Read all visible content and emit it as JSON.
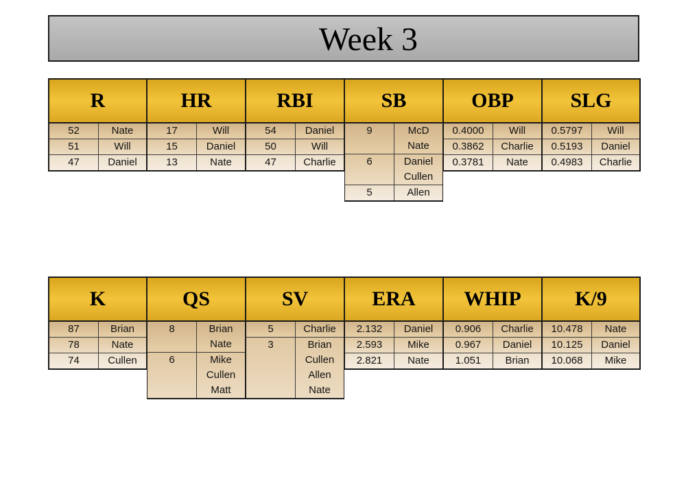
{
  "title": "Week 3",
  "hitting": [
    {
      "label": "R",
      "groups": [
        {
          "value": "52",
          "names": [
            "Nate"
          ]
        },
        {
          "value": "51",
          "names": [
            "Will"
          ]
        },
        {
          "value": "47",
          "names": [
            "Daniel"
          ]
        }
      ]
    },
    {
      "label": "HR",
      "groups": [
        {
          "value": "17",
          "names": [
            "Will"
          ]
        },
        {
          "value": "15",
          "names": [
            "Daniel"
          ]
        },
        {
          "value": "13",
          "names": [
            "Nate"
          ]
        }
      ]
    },
    {
      "label": "RBI",
      "groups": [
        {
          "value": "54",
          "names": [
            "Daniel"
          ]
        },
        {
          "value": "50",
          "names": [
            "Will"
          ]
        },
        {
          "value": "47",
          "names": [
            "Charlie"
          ]
        }
      ]
    },
    {
      "label": "SB",
      "groups": [
        {
          "value": "9",
          "names": [
            "McD",
            "Nate"
          ]
        },
        {
          "value": "6",
          "names": [
            "Daniel",
            "Cullen"
          ]
        },
        {
          "value": "5",
          "names": [
            "Allen"
          ]
        }
      ]
    },
    {
      "label": "OBP",
      "groups": [
        {
          "value": "0.4000",
          "names": [
            "Will"
          ]
        },
        {
          "value": "0.3862",
          "names": [
            "Charlie"
          ]
        },
        {
          "value": "0.3781",
          "names": [
            "Nate"
          ]
        }
      ]
    },
    {
      "label": "SLG",
      "groups": [
        {
          "value": "0.5797",
          "names": [
            "Will"
          ]
        },
        {
          "value": "0.5193",
          "names": [
            "Daniel"
          ]
        },
        {
          "value": "0.4983",
          "names": [
            "Charlie"
          ]
        }
      ]
    }
  ],
  "pitching": [
    {
      "label": "K",
      "groups": [
        {
          "value": "87",
          "names": [
            "Brian"
          ]
        },
        {
          "value": "78",
          "names": [
            "Nate"
          ]
        },
        {
          "value": "74",
          "names": [
            "Cullen"
          ]
        }
      ]
    },
    {
      "label": "QS",
      "groups": [
        {
          "value": "8",
          "names": [
            "Brian",
            "Nate"
          ]
        },
        {
          "value": "6",
          "names": [
            "Mike",
            "Cullen",
            "Matt"
          ]
        }
      ]
    },
    {
      "label": "SV",
      "groups": [
        {
          "value": "5",
          "names": [
            "Charlie"
          ]
        },
        {
          "value": "3",
          "names": [
            "Brian",
            "Cullen",
            "Allen",
            "Nate"
          ]
        }
      ]
    },
    {
      "label": "ERA",
      "groups": [
        {
          "value": "2.132",
          "names": [
            "Daniel"
          ]
        },
        {
          "value": "2.593",
          "names": [
            "Mike"
          ]
        },
        {
          "value": "2.821",
          "names": [
            "Nate"
          ]
        }
      ]
    },
    {
      "label": "WHIP",
      "groups": [
        {
          "value": "0.906",
          "names": [
            "Charlie"
          ]
        },
        {
          "value": "0.967",
          "names": [
            "Daniel"
          ]
        },
        {
          "value": "1.051",
          "names": [
            "Brian"
          ]
        }
      ]
    },
    {
      "label": "K/9",
      "groups": [
        {
          "value": "10.478",
          "names": [
            "Nate"
          ]
        },
        {
          "value": "10.125",
          "names": [
            "Daniel"
          ]
        },
        {
          "value": "10.068",
          "names": [
            "Mike"
          ]
        }
      ]
    }
  ],
  "colors": {
    "header_gold": "#f2c43a",
    "title_gray": "#b5b5b5",
    "rank1": "#dcc29a",
    "rank2": "#e8d4b4",
    "rank3": "#f2e6d6"
  }
}
